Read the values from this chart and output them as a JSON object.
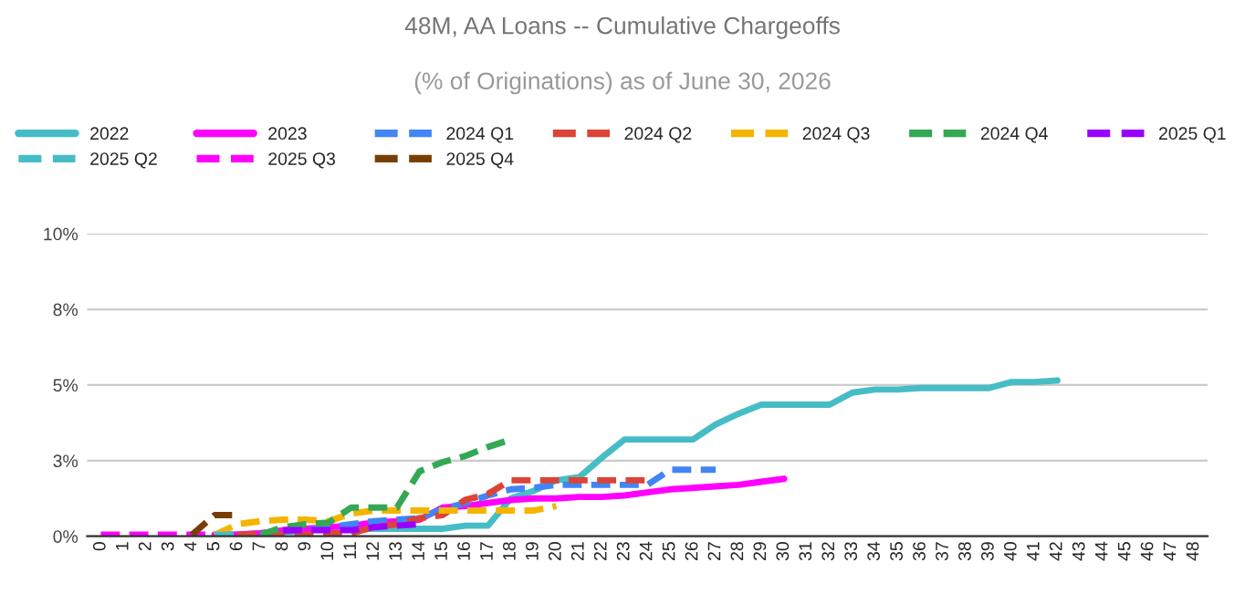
{
  "chart_data": {
    "type": "line",
    "title": "48M, AA Loans -- Cumulative Chargeoffs",
    "subtitle": "(% of Originations) as of June 30, 2026",
    "xlim": [
      -0.6,
      48.6
    ],
    "xticks": [
      0,
      1,
      2,
      3,
      4,
      5,
      6,
      7,
      8,
      9,
      10,
      11,
      12,
      13,
      14,
      15,
      16,
      17,
      18,
      19,
      20,
      21,
      22,
      23,
      24,
      25,
      26,
      27,
      28,
      29,
      30,
      31,
      32,
      33,
      34,
      35,
      36,
      37,
      38,
      39,
      40,
      41,
      42,
      43,
      44,
      45,
      46,
      47,
      48
    ],
    "ylim": [
      0,
      10
    ],
    "yticks": [
      {
        "value": 0,
        "label": "0%"
      },
      {
        "value": 2.5,
        "label": "3%"
      },
      {
        "value": 5,
        "label": "5%"
      },
      {
        "value": 7.5,
        "label": "8%"
      },
      {
        "value": 10,
        "label": "10%"
      }
    ],
    "grid": "y",
    "legend": "top",
    "marker": "none",
    "series": [
      {
        "name": "2022",
        "color": "#46bdc6",
        "line_style": "solid",
        "x": [
          5,
          6,
          7,
          8,
          9,
          10,
          11,
          12,
          13,
          14,
          15,
          16,
          17,
          18,
          19,
          20,
          21,
          22,
          23,
          24,
          25,
          26,
          27,
          28,
          29,
          30,
          31,
          32,
          33,
          34,
          35,
          36,
          37,
          38,
          39,
          40,
          41,
          42
        ],
        "values": [
          0.05,
          0.05,
          0.1,
          0.15,
          0.2,
          0.25,
          0.25,
          0.25,
          0.25,
          0.25,
          0.25,
          0.35,
          0.35,
          1.25,
          1.5,
          1.85,
          1.95,
          2.6,
          3.2,
          3.2,
          3.2,
          3.2,
          3.7,
          4.05,
          4.35,
          4.35,
          4.35,
          4.35,
          4.75,
          4.85,
          4.85,
          4.9,
          4.9,
          4.9,
          4.9,
          5.1,
          5.1,
          5.15
        ]
      },
      {
        "name": "2023",
        "color": "#ff00ff",
        "line_style": "solid",
        "x": [
          5,
          6,
          7,
          8,
          9,
          10,
          11,
          12,
          13,
          14,
          15,
          16,
          17,
          18,
          19,
          20,
          21,
          22,
          23,
          24,
          25,
          26,
          27,
          28,
          29,
          30
        ],
        "values": [
          0.05,
          0.05,
          0.1,
          0.2,
          0.25,
          0.3,
          0.35,
          0.45,
          0.5,
          0.55,
          0.95,
          1.0,
          1.1,
          1.2,
          1.25,
          1.25,
          1.3,
          1.3,
          1.35,
          1.45,
          1.55,
          1.6,
          1.65,
          1.7,
          1.8,
          1.9
        ]
      },
      {
        "name": "2024 Q1",
        "color": "#4285f4",
        "line_style": "dashed",
        "x": [
          8,
          9,
          10,
          11,
          12,
          13,
          14,
          15,
          16,
          17,
          18,
          19,
          20,
          21,
          22,
          23,
          24,
          25,
          26,
          27
        ],
        "values": [
          0.15,
          0.2,
          0.3,
          0.4,
          0.5,
          0.55,
          0.6,
          0.9,
          1.1,
          1.35,
          1.55,
          1.6,
          1.7,
          1.7,
          1.7,
          1.7,
          1.7,
          2.2,
          2.2,
          2.2
        ]
      },
      {
        "name": "2024 Q2",
        "color": "#db4437",
        "line_style": "dashed",
        "x": [
          6,
          7,
          8,
          9,
          10,
          11,
          12,
          13,
          14,
          15,
          16,
          17,
          18,
          19,
          20,
          21,
          22,
          23,
          24
        ],
        "values": [
          0.05,
          0.05,
          0.05,
          0.05,
          0.1,
          0.1,
          0.3,
          0.4,
          0.6,
          0.7,
          1.2,
          1.4,
          1.85,
          1.85,
          1.85,
          1.85,
          1.85,
          1.85,
          1.85
        ]
      },
      {
        "name": "2024 Q3",
        "color": "#f4b400",
        "line_style": "dashed",
        "x": [
          5,
          6,
          7,
          8,
          9,
          10,
          11,
          12,
          13,
          14,
          15,
          16,
          17,
          18,
          19,
          20
        ],
        "values": [
          0.05,
          0.4,
          0.5,
          0.55,
          0.55,
          0.5,
          0.75,
          0.85,
          0.85,
          0.85,
          0.85,
          0.85,
          0.85,
          0.85,
          0.85,
          1.0
        ]
      },
      {
        "name": "2024 Q4",
        "color": "#34a853",
        "line_style": "dashed",
        "x": [
          7,
          8,
          9,
          10,
          11,
          12,
          13,
          14,
          15,
          16,
          17,
          18
        ],
        "values": [
          0.05,
          0.3,
          0.4,
          0.45,
          0.95,
          0.95,
          0.95,
          2.15,
          2.45,
          2.65,
          2.95,
          3.2
        ]
      },
      {
        "name": "2025 Q1",
        "color": "#9900ff",
        "line_style": "dashed",
        "x": [
          8,
          9,
          10,
          11,
          12,
          13,
          14
        ],
        "values": [
          0.2,
          0.2,
          0.2,
          0.2,
          0.3,
          0.35,
          0.4
        ]
      },
      {
        "name": "2025 Q2",
        "color": "#46bdc6",
        "line_style": "dashed",
        "x": [
          5,
          6
        ],
        "values": [
          0.05,
          0.05
        ]
      },
      {
        "name": "2025 Q3",
        "color": "#ff00ff",
        "line_style": "dashed",
        "x": [
          0,
          1,
          2,
          3,
          4,
          5
        ],
        "values": [
          0.05,
          0.05,
          0.05,
          0.05,
          0.05,
          0.05
        ]
      },
      {
        "name": "2025 Q4",
        "color": "#783f04",
        "line_style": "dashed",
        "x": [
          4,
          5,
          6
        ],
        "values": [
          0.05,
          0.7,
          0.7
        ]
      }
    ]
  }
}
